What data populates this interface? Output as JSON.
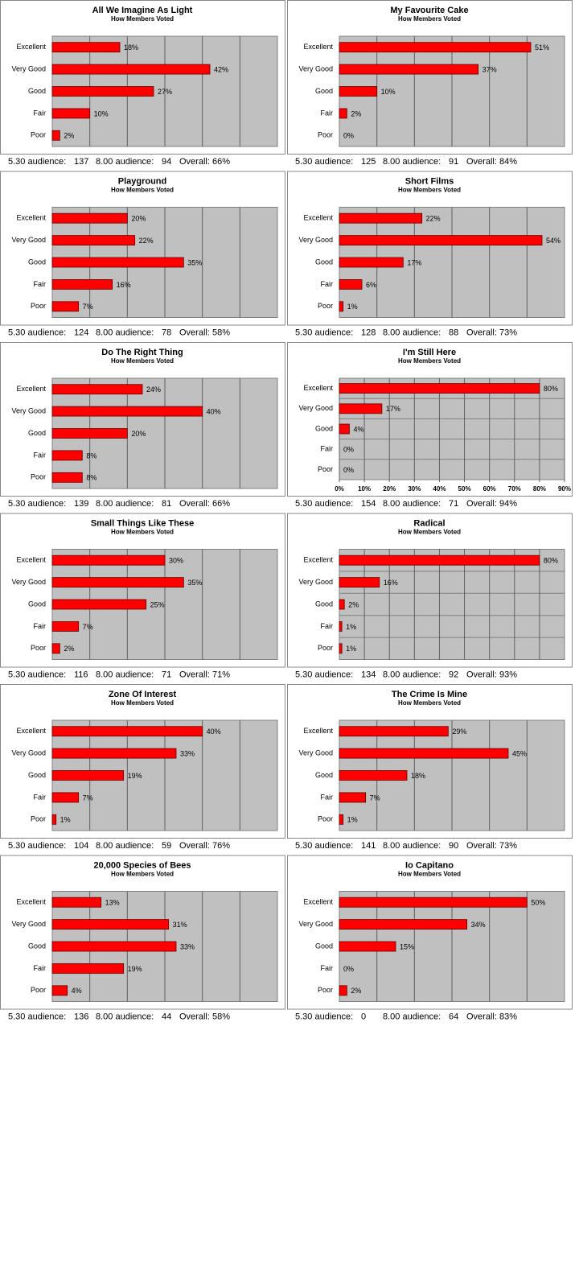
{
  "chart_data": [
    {
      "type": "bar",
      "title": "All We Imagine As Light",
      "subtitle": "How Members Voted",
      "categories": [
        "Excellent",
        "Very Good",
        "Good",
        "Fair",
        "Poor"
      ],
      "values": [
        18,
        42,
        27,
        10,
        2
      ],
      "value_labels": [
        "18%",
        "42%",
        "27%",
        "10%",
        "2%"
      ],
      "color": "#ff0000",
      "xlim": [
        0,
        60
      ],
      "xgrid": [
        10,
        20,
        30,
        40,
        50
      ],
      "footer": {
        "early_label": "5.30 audience:",
        "early": 137,
        "late_label": "8.00 audience:",
        "late": 94,
        "overall": "Overall: 66%"
      }
    },
    {
      "type": "bar",
      "title": "My Favourite Cake",
      "subtitle": "How Members Voted",
      "categories": [
        "Excellent",
        "Very Good",
        "Good",
        "Fair",
        "Poor"
      ],
      "values": [
        51,
        37,
        10,
        2,
        0
      ],
      "value_labels": [
        "51%",
        "37%",
        "10%",
        "2%",
        "0%"
      ],
      "color": "#ff0000",
      "xlim": [
        0,
        60
      ],
      "xgrid": [
        10,
        20,
        30,
        40,
        50
      ],
      "footer": {
        "early_label": "5.30 audience:",
        "early": 125,
        "late_label": "8.00 audience:",
        "late": 91,
        "overall": "Overall: 84%"
      }
    },
    {
      "type": "bar",
      "title": "Playground",
      "subtitle": "How Members Voted",
      "categories": [
        "Excellent",
        "Very Good",
        "Good",
        "Fair",
        "Poor"
      ],
      "values": [
        20,
        22,
        35,
        16,
        7
      ],
      "value_labels": [
        "20%",
        "22%",
        "35%",
        "16%",
        "7%"
      ],
      "color": "#ff0000",
      "xlim": [
        0,
        60
      ],
      "xgrid": [
        10,
        20,
        30,
        40,
        50
      ],
      "footer": {
        "early_label": "5.30 audience:",
        "early": 124,
        "late_label": "8.00 audience:",
        "late": 78,
        "overall": "Overall: 58%"
      }
    },
    {
      "type": "bar",
      "title": "Short Films",
      "subtitle": "How Members Voted",
      "categories": [
        "Excellent",
        "Very Good",
        "Good",
        "Fair",
        "Poor"
      ],
      "values": [
        22,
        54,
        17,
        6,
        1
      ],
      "value_labels": [
        "22%",
        "54%",
        "17%",
        "6%",
        "1%"
      ],
      "color": "#ff0000",
      "xlim": [
        0,
        60
      ],
      "xgrid": [
        10,
        20,
        30,
        40,
        50
      ],
      "footer": {
        "early_label": "5.30 audience:",
        "early": 128,
        "late_label": "8.00 audience:",
        "late": 88,
        "overall": "Overall: 73%"
      }
    },
    {
      "type": "bar",
      "title": "Do The Right Thing",
      "subtitle": "How Members Voted",
      "categories": [
        "Excellent",
        "Very Good",
        "Good",
        "Fair",
        "Poor"
      ],
      "values": [
        24,
        40,
        20,
        8,
        8
      ],
      "value_labels": [
        "24%",
        "40%",
        "20%",
        "8%",
        "8%"
      ],
      "color": "#ff0000",
      "xlim": [
        0,
        60
      ],
      "xgrid": [
        10,
        20,
        30,
        40,
        50
      ],
      "footer": {
        "early_label": "5.30 audience:",
        "early": 139,
        "late_label": "8.00 audience:",
        "late": 81,
        "overall": "Overall: 66%"
      }
    },
    {
      "type": "bar",
      "title": "I'm Still Here",
      "subtitle": "How Members Voted",
      "categories": [
        "Excellent",
        "Very Good",
        "Good",
        "Fair",
        "Poor"
      ],
      "values": [
        80,
        17,
        4,
        0,
        0
      ],
      "value_labels": [
        "80%",
        "17%",
        "4%",
        "0%",
        "0%"
      ],
      "color": "#ff0000",
      "xlim": [
        0,
        90
      ],
      "xticks": [
        {
          "value": 0,
          "label": "0%"
        },
        {
          "value": 10,
          "label": "10%"
        },
        {
          "value": 20,
          "label": "20%"
        },
        {
          "value": 30,
          "label": "30%"
        },
        {
          "value": 40,
          "label": "40%"
        },
        {
          "value": 50,
          "label": "50%"
        },
        {
          "value": 60,
          "label": "60%"
        },
        {
          "value": 70,
          "label": "70%"
        },
        {
          "value": 80,
          "label": "80%"
        },
        {
          "value": 90,
          "label": "90%"
        }
      ],
      "hgrid": true,
      "footer": {
        "early_label": "5.30 audience:",
        "early": 154,
        "late_label": "8.00 audience:",
        "late": 71,
        "overall": "Overall: 94%"
      }
    },
    {
      "type": "bar",
      "title": "Small Things Like These",
      "subtitle": "How Members Voted",
      "categories": [
        "Excellent",
        "Very Good",
        "Good",
        "Fair",
        "Poor"
      ],
      "values": [
        30,
        35,
        25,
        7,
        2
      ],
      "value_labels": [
        "30%",
        "35%",
        "25%",
        "7%",
        "2%"
      ],
      "color": "#ff0000",
      "xlim": [
        0,
        60
      ],
      "xgrid": [
        10,
        20,
        30,
        40,
        50
      ],
      "footer": {
        "early_label": "5.30 audience:",
        "early": 116,
        "late_label": "8.00 audience:",
        "late": 71,
        "overall": "Overall: 71%"
      }
    },
    {
      "type": "bar",
      "title": "Radical",
      "subtitle": "How Members Voted",
      "categories": [
        "Excellent",
        "Very Good",
        "Good",
        "Fair",
        "Poor"
      ],
      "values": [
        80,
        16,
        2,
        1,
        1
      ],
      "value_labels": [
        "80%",
        "16%",
        "2%",
        "1%",
        "1%"
      ],
      "color": "#ff0000",
      "xlim": [
        0,
        90
      ],
      "xgrid": [
        10,
        20,
        30,
        40,
        50,
        60,
        70,
        80
      ],
      "hgrid": true,
      "footer": {
        "early_label": "5.30 audience:",
        "early": 134,
        "late_label": "8.00 audience:",
        "late": 92,
        "overall": "Overall: 93%"
      }
    },
    {
      "type": "bar",
      "title": "Zone Of Interest",
      "subtitle": "How Members Voted",
      "categories": [
        "Excellent",
        "Very Good",
        "Good",
        "Fair",
        "Poor"
      ],
      "values": [
        40,
        33,
        19,
        7,
        1
      ],
      "value_labels": [
        "40%",
        "33%",
        "19%",
        "7%",
        "1%"
      ],
      "color": "#ff0000",
      "xlim": [
        0,
        60
      ],
      "xgrid": [
        10,
        20,
        30,
        40,
        50
      ],
      "footer": {
        "early_label": "5.30 audience:",
        "early": 104,
        "late_label": "8.00 audience:",
        "late": 59,
        "overall": "Overall: 76%"
      }
    },
    {
      "type": "bar",
      "title": "The Crime Is Mine",
      "subtitle": "How Members Voted",
      "categories": [
        "Excellent",
        "Very Good",
        "Good",
        "Fair",
        "Poor"
      ],
      "values": [
        29,
        45,
        18,
        7,
        1
      ],
      "value_labels": [
        "29%",
        "45%",
        "18%",
        "7%",
        "1%"
      ],
      "color": "#ff0000",
      "xlim": [
        0,
        60
      ],
      "xgrid": [
        10,
        20,
        30,
        40,
        50
      ],
      "footer": {
        "early_label": "5.30 audience:",
        "early": 141,
        "late_label": "8.00 audience:",
        "late": 90,
        "overall": "Overall: 73%"
      }
    },
    {
      "type": "bar",
      "title": "20,000 Species of Bees",
      "subtitle": "How Members Voted",
      "categories": [
        "Excellent",
        "Very Good",
        "Good",
        "Fair",
        "Poor"
      ],
      "values": [
        13,
        31,
        33,
        19,
        4
      ],
      "value_labels": [
        "13%",
        "31%",
        "33%",
        "19%",
        "4%"
      ],
      "color": "#ff0000",
      "xlim": [
        0,
        60
      ],
      "xgrid": [
        10,
        20,
        30,
        40,
        50
      ],
      "footer": {
        "early_label": "5.30 audience:",
        "early": 136,
        "late_label": "8.00 audience:",
        "late": 44,
        "overall": "Overall: 58%"
      }
    },
    {
      "type": "bar",
      "title": "Io Capitano",
      "subtitle": "How Members Voted",
      "categories": [
        "Excellent",
        "Very Good",
        "Good",
        "Fair",
        "Poor"
      ],
      "values": [
        50,
        34,
        15,
        0,
        2
      ],
      "value_labels": [
        "50%",
        "34%",
        "15%",
        "0%",
        "2%"
      ],
      "color": "#ff0000",
      "xlim": [
        0,
        60
      ],
      "xgrid": [
        10,
        20,
        30,
        40,
        50
      ],
      "footer": {
        "early_label": "5.30 audience:",
        "early": 0,
        "late_label": "8.00 audience:",
        "late": 64,
        "overall": "Overall: 83%"
      }
    }
  ]
}
